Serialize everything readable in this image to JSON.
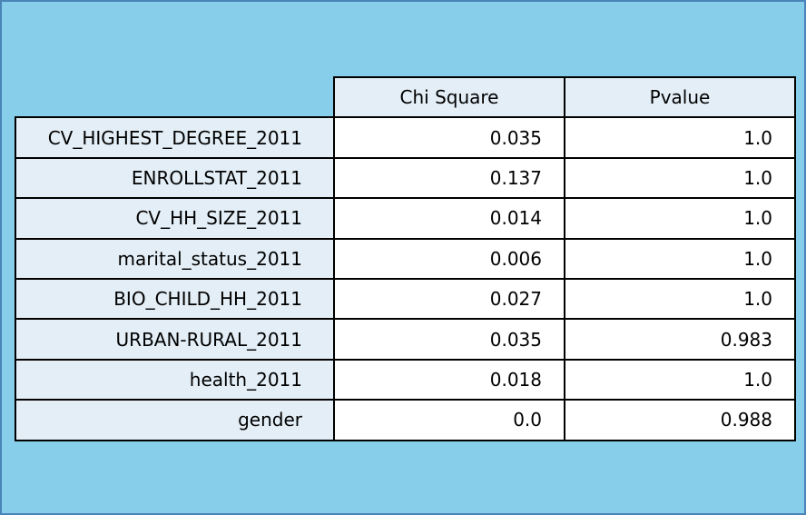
{
  "chart_data": {
    "type": "table",
    "columns": [
      "Chi Square",
      "Pvalue"
    ],
    "rows": [
      {
        "label": "CV_HIGHEST_DEGREE_2011",
        "values": [
          "0.035",
          "1.0"
        ]
      },
      {
        "label": "ENROLLSTAT_2011",
        "values": [
          "0.137",
          "1.0"
        ]
      },
      {
        "label": "CV_HH_SIZE_2011",
        "values": [
          "0.014",
          "1.0"
        ]
      },
      {
        "label": "marital_status_2011",
        "values": [
          "0.006",
          "1.0"
        ]
      },
      {
        "label": "BIO_CHILD_HH_2011",
        "values": [
          "0.027",
          "1.0"
        ]
      },
      {
        "label": "URBAN-RURAL_2011",
        "values": [
          "0.035",
          "0.983"
        ]
      },
      {
        "label": "health_2011",
        "values": [
          "0.018",
          "1.0"
        ]
      },
      {
        "label": "gender",
        "values": [
          "0.0",
          "0.988"
        ]
      }
    ]
  },
  "colors": {
    "background": "#87ceeb",
    "frame_border": "#4a84b8",
    "header_fill": "#e3eef6",
    "cell_fill": "#ffffff",
    "grid_line": "#000000"
  }
}
